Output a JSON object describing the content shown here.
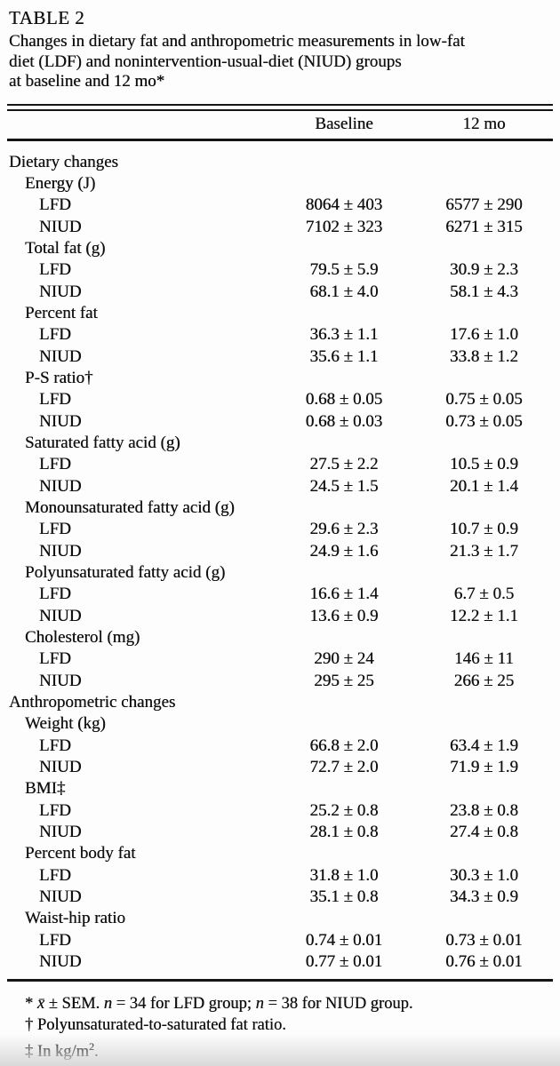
{
  "colors": {
    "ink": "#111111",
    "paper": "#fdfdfd",
    "rule": "#151515"
  },
  "header": {
    "table_label": "TABLE 2",
    "caption_lines": [
      "Changes in dietary fat and anthropometric measurements in low-fat",
      "diet (LDF) and nonintervention-usual-diet (NIUD) groups",
      "at baseline and 12 mo*"
    ]
  },
  "table": {
    "columns": [
      "Baseline",
      "12 mo"
    ],
    "rows": [
      {
        "label": "Dietary changes",
        "indent": 0,
        "baseline": "",
        "mo12": ""
      },
      {
        "label": "Energy (J)",
        "indent": 1,
        "baseline": "",
        "mo12": ""
      },
      {
        "label": "LFD",
        "indent": 2,
        "baseline": "8064 ± 403",
        "mo12": "6577 ± 290"
      },
      {
        "label": "NIUD",
        "indent": 2,
        "baseline": "7102 ± 323",
        "mo12": "6271 ± 315"
      },
      {
        "label": "Total fat (g)",
        "indent": 1,
        "baseline": "",
        "mo12": ""
      },
      {
        "label": "LFD",
        "indent": 2,
        "baseline": "79.5 ± 5.9",
        "mo12": "30.9 ± 2.3"
      },
      {
        "label": "NIUD",
        "indent": 2,
        "baseline": "68.1 ± 4.0",
        "mo12": "58.1 ± 4.3"
      },
      {
        "label": "Percent fat",
        "indent": 1,
        "baseline": "",
        "mo12": ""
      },
      {
        "label": "LFD",
        "indent": 2,
        "baseline": "36.3 ± 1.1",
        "mo12": "17.6 ± 1.0"
      },
      {
        "label": "NIUD",
        "indent": 2,
        "baseline": "35.6 ± 1.1",
        "mo12": "33.8 ± 1.2"
      },
      {
        "label": "P-S ratio†",
        "indent": 1,
        "baseline": "",
        "mo12": ""
      },
      {
        "label": "LFD",
        "indent": 2,
        "baseline": "0.68 ± 0.05",
        "mo12": "0.75 ± 0.05"
      },
      {
        "label": "NIUD",
        "indent": 2,
        "baseline": "0.68 ± 0.03",
        "mo12": "0.73 ± 0.05"
      },
      {
        "label": "Saturated fatty acid (g)",
        "indent": 1,
        "baseline": "",
        "mo12": ""
      },
      {
        "label": "LFD",
        "indent": 2,
        "baseline": "27.5 ± 2.2",
        "mo12": "10.5 ± 0.9"
      },
      {
        "label": "NIUD",
        "indent": 2,
        "baseline": "24.5 ± 1.5",
        "mo12": "20.1 ± 1.4"
      },
      {
        "label": "Monounsaturated fatty acid (g)",
        "indent": 1,
        "baseline": "",
        "mo12": ""
      },
      {
        "label": "LFD",
        "indent": 2,
        "baseline": "29.6 ± 2.3",
        "mo12": "10.7 ± 0.9"
      },
      {
        "label": "NIUD",
        "indent": 2,
        "baseline": "24.9 ± 1.6",
        "mo12": "21.3 ± 1.7"
      },
      {
        "label": "Polyunsaturated fatty acid (g)",
        "indent": 1,
        "baseline": "",
        "mo12": ""
      },
      {
        "label": "LFD",
        "indent": 2,
        "baseline": "16.6 ± 1.4",
        "mo12": "6.7 ± 0.5"
      },
      {
        "label": "NIUD",
        "indent": 2,
        "baseline": "13.6 ± 0.9",
        "mo12": "12.2 ± 1.1"
      },
      {
        "label": "Cholesterol (mg)",
        "indent": 1,
        "baseline": "",
        "mo12": ""
      },
      {
        "label": "LFD",
        "indent": 2,
        "baseline": "290 ± 24",
        "mo12": "146 ± 11"
      },
      {
        "label": "NIUD",
        "indent": 2,
        "baseline": "295 ± 25",
        "mo12": "266 ± 25"
      },
      {
        "label": "Anthropometric changes",
        "indent": 0,
        "baseline": "",
        "mo12": ""
      },
      {
        "label": "Weight (kg)",
        "indent": 1,
        "baseline": "",
        "mo12": ""
      },
      {
        "label": "LFD",
        "indent": 2,
        "baseline": "66.8 ± 2.0",
        "mo12": "63.4 ± 1.9"
      },
      {
        "label": "NIUD",
        "indent": 2,
        "baseline": "72.7 ± 2.0",
        "mo12": "71.9 ± 1.9"
      },
      {
        "label": "BMI‡",
        "indent": 1,
        "baseline": "",
        "mo12": ""
      },
      {
        "label": "LFD",
        "indent": 2,
        "baseline": "25.2 ± 0.8",
        "mo12": "23.8 ± 0.8"
      },
      {
        "label": "NIUD",
        "indent": 2,
        "baseline": "28.1 ± 0.8",
        "mo12": "27.4 ± 0.8"
      },
      {
        "label": "Percent body fat",
        "indent": 1,
        "baseline": "",
        "mo12": ""
      },
      {
        "label": "LFD",
        "indent": 2,
        "baseline": "31.8 ± 1.0",
        "mo12": "30.3 ± 1.0"
      },
      {
        "label": "NIUD",
        "indent": 2,
        "baseline": "35.1 ± 0.8",
        "mo12": "34.3 ± 0.9"
      },
      {
        "label": "Waist-hip ratio",
        "indent": 1,
        "baseline": "",
        "mo12": ""
      },
      {
        "label": "LFD",
        "indent": 2,
        "baseline": "0.74 ± 0.01",
        "mo12": "0.73 ± 0.01"
      },
      {
        "label": "NIUD",
        "indent": 2,
        "baseline": "0.77 ± 0.01",
        "mo12": "0.76 ± 0.01"
      }
    ]
  },
  "footnotes": [
    {
      "segments": [
        {
          "t": "* "
        },
        {
          "t": "x̄",
          "i": true
        },
        {
          "t": " ± SEM. "
        },
        {
          "t": "n",
          "i": true
        },
        {
          "t": " = 34 for LFD group; "
        },
        {
          "t": "n",
          "i": true
        },
        {
          "t": " = 38 for NIUD group."
        }
      ]
    },
    {
      "segments": [
        {
          "t": "† Polyunsaturated-to-saturated fat ratio."
        }
      ]
    },
    {
      "segments": [
        {
          "t": "‡ In kg/m"
        },
        {
          "t": "2",
          "sup": true
        },
        {
          "t": "."
        }
      ]
    }
  ]
}
